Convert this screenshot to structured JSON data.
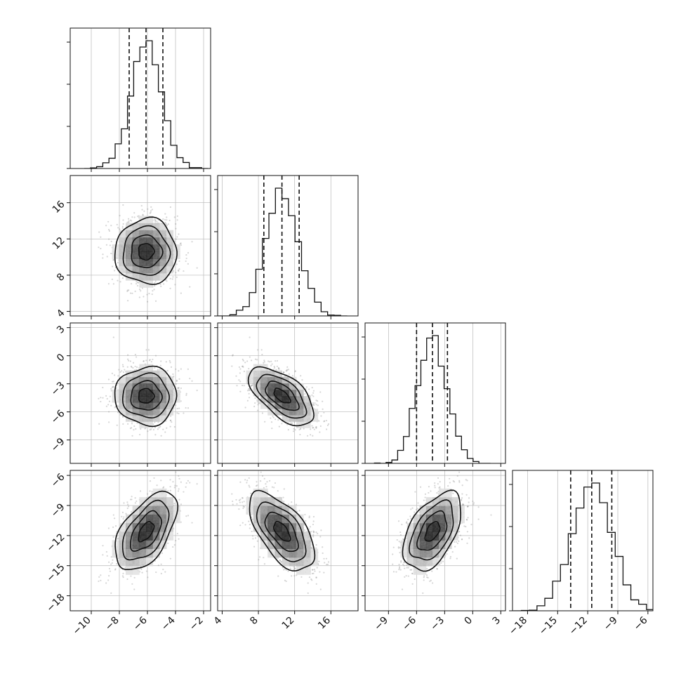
{
  "chart_data": {
    "type": "corner",
    "title": "",
    "grid": true,
    "parameters": [
      {
        "index": 0,
        "range": [
          -11.5,
          -1.5
        ],
        "mean": -6.1,
        "sd": 1.1,
        "quantiles": [
          -7.3,
          -6.1,
          -4.9
        ],
        "ticks": [
          -10,
          -8,
          -6,
          -4,
          -2
        ],
        "tick_labels": [
          "−10",
          "−8",
          "−6",
          "−4",
          "−2"
        ]
      },
      {
        "index": 1,
        "range": [
          3.5,
          19.0
        ],
        "mean": 10.6,
        "sd": 1.8,
        "quantiles": [
          8.6,
          10.6,
          12.5
        ],
        "ticks": [
          4,
          8,
          12,
          16
        ],
        "tick_labels": [
          "4",
          "8",
          "12",
          "16"
        ]
      },
      {
        "index": 2,
        "range": [
          -11.5,
          3.5
        ],
        "mean": -4.3,
        "sd": 1.55,
        "quantiles": [
          -6.0,
          -4.3,
          -2.7
        ],
        "ticks": [
          -9,
          -6,
          -3,
          0,
          3
        ],
        "tick_labels": [
          "−9",
          "−6",
          "−3",
          "0",
          "3"
        ]
      },
      {
        "index": 3,
        "range": [
          -19.5,
          -5.5
        ],
        "mean": -11.6,
        "sd": 1.95,
        "quantiles": [
          -13.7,
          -11.6,
          -9.6
        ],
        "ticks": [
          -18,
          -15,
          -12,
          -9,
          -6
        ],
        "tick_labels": [
          "−18",
          "−15",
          "−12",
          "−9",
          "−6"
        ]
      }
    ],
    "correlations": [
      {
        "pair": [
          1,
          0
        ],
        "rho": 0.0
      },
      {
        "pair": [
          2,
          0
        ],
        "rho": 0.0
      },
      {
        "pair": [
          2,
          1
        ],
        "rho": -0.6
      },
      {
        "pair": [
          3,
          0
        ],
        "rho": 0.55
      },
      {
        "pair": [
          3,
          1
        ],
        "rho": -0.6
      },
      {
        "pair": [
          3,
          2
        ],
        "rho": 0.5
      }
    ],
    "contour_levels_sigma": [
      0.5,
      1.0,
      1.5,
      2.0
    ],
    "histogram_bins": 20
  }
}
